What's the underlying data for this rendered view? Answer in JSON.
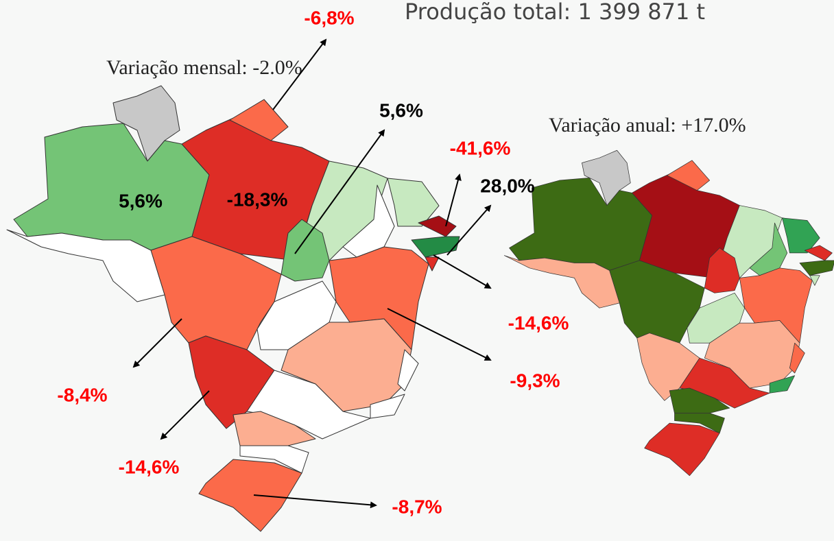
{
  "header": {
    "production_total": "Produção total: 1 399 871 t"
  },
  "maps": [
    {
      "title": "Variação mensal: -2.0%"
    },
    {
      "title": "Variação anual: +17.0%"
    }
  ],
  "labels": [
    {
      "text": "-6,8%"
    },
    {
      "text": "5,6%"
    },
    {
      "text": "-41,6%"
    },
    {
      "text": "28,0%"
    },
    {
      "text": "5,6%"
    },
    {
      "text": "-18,3%"
    },
    {
      "text": "-14,6%"
    },
    {
      "text": "-9,3%"
    },
    {
      "text": "-8,4%"
    },
    {
      "text": "-14,6%"
    },
    {
      "text": "-8,7%"
    }
  ]
}
